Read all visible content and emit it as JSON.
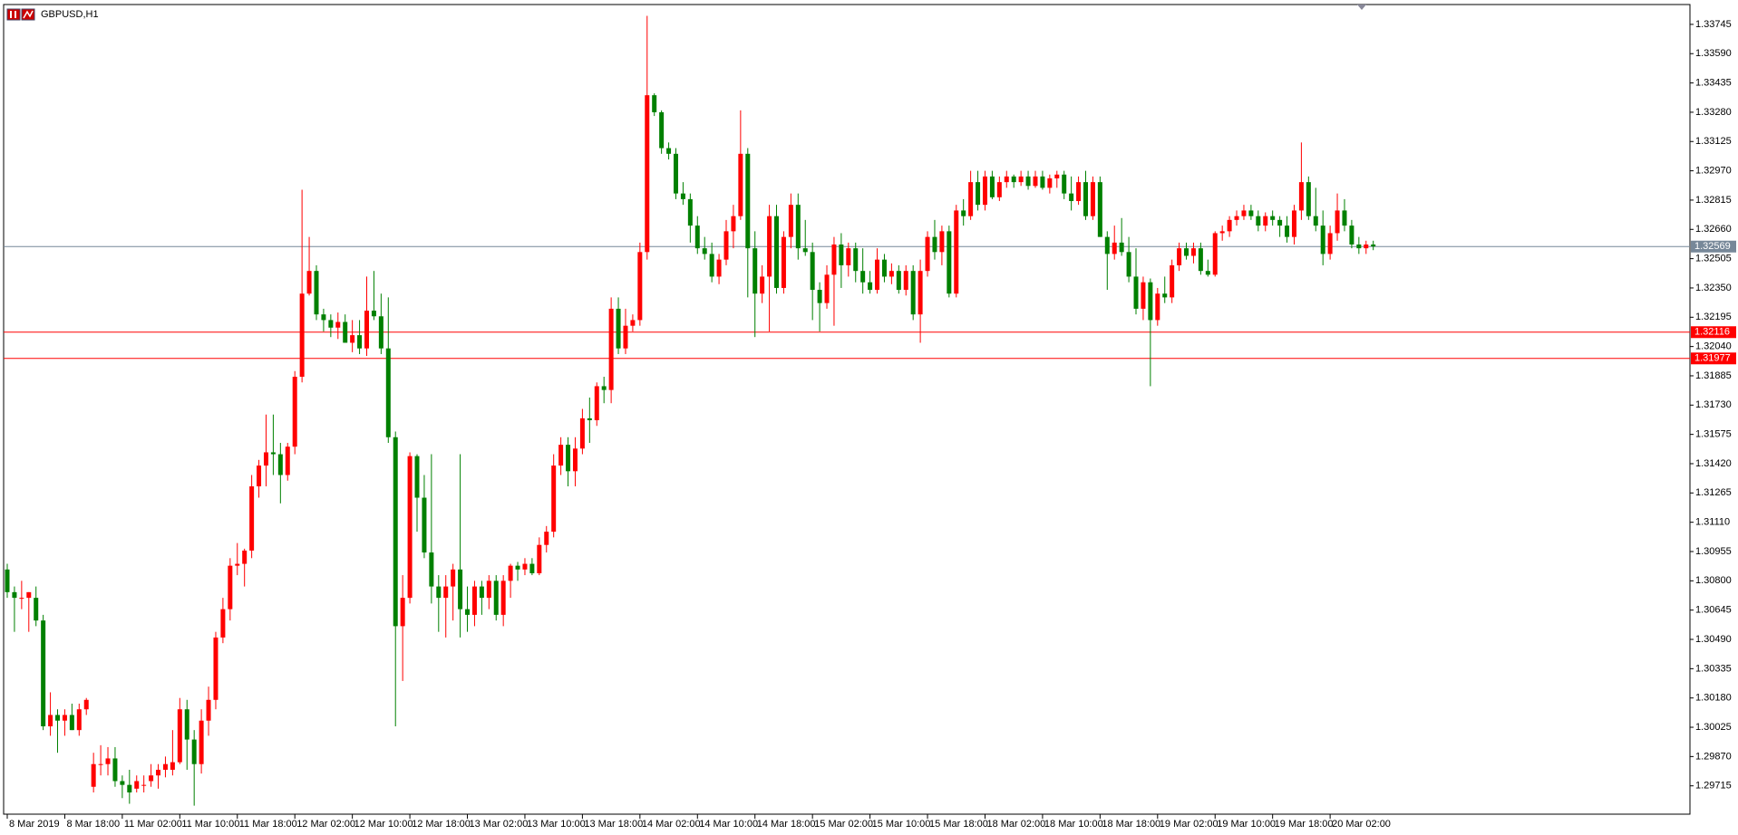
{
  "chart_data": {
    "type": "candlestick",
    "title": "GBPUSD,H1",
    "up_color": "#ff0000",
    "down_color": "#008000",
    "ylim": [
      1.29565,
      1.3385
    ],
    "yticks": [
      1.33745,
      {
        "value": 1.3359,
        "label": "1.33590"
      },
      1.33435,
      {
        "value": 1.3328,
        "label": "1.33280"
      },
      1.33125,
      {
        "value": 1.3297,
        "label": "1.32970"
      },
      1.32815,
      {
        "value": 1.3266,
        "label": "1.32660"
      },
      1.32505,
      {
        "value": 1.3235,
        "label": "1.32350"
      },
      1.32195,
      {
        "value": 1.3204,
        "label": "1.32040"
      },
      1.31885,
      {
        "value": 1.3173,
        "label": "1.31730"
      },
      1.31575,
      {
        "value": 1.3142,
        "label": "1.31420"
      },
      1.31265,
      {
        "value": 1.3111,
        "label": "1.31110"
      },
      1.30955,
      {
        "value": 1.308,
        "label": "1.30800"
      },
      1.30645,
      {
        "value": 1.3049,
        "label": "1.30490"
      },
      1.30335,
      {
        "value": 1.3018,
        "label": "1.30180"
      },
      1.30025,
      {
        "value": 1.2987,
        "label": "1.29870"
      },
      1.29715
    ],
    "hlines": [
      {
        "value": 1.32569,
        "color": "#778899"
      },
      {
        "value": 1.32116,
        "color": "#ff0000"
      },
      {
        "value": 1.31977,
        "color": "#ff0000"
      }
    ],
    "categories": [
      "8 Mar 2019",
      null,
      null,
      null,
      null,
      null,
      null,
      null,
      "8 Mar 18:00",
      null,
      null,
      null,
      null,
      null,
      null,
      null,
      "11 Mar 02:00",
      null,
      null,
      null,
      null,
      null,
      null,
      null,
      "11 Mar 10:00",
      null,
      null,
      null,
      null,
      null,
      null,
      null,
      "11 Mar 18:00",
      null,
      null,
      null,
      null,
      null,
      null,
      null,
      "12 Mar 02:00",
      null,
      null,
      null,
      null,
      null,
      null,
      null,
      "12 Mar 10:00",
      null,
      null,
      null,
      null,
      null,
      null,
      null,
      "12 Mar 18:00",
      null,
      null,
      null,
      null,
      null,
      null,
      null,
      "13 Mar 02:00",
      null,
      null,
      null,
      null,
      null,
      null,
      null,
      "13 Mar 10:00",
      null,
      null,
      null,
      null,
      null,
      null,
      null,
      "13 Mar 18:00",
      null,
      null,
      null,
      null,
      null,
      null,
      null,
      "14 Mar 02:00",
      null,
      null,
      null,
      null,
      null,
      null,
      null,
      "14 Mar 10:00",
      null,
      null,
      null,
      null,
      null,
      null,
      null,
      "14 Mar 18:00",
      null,
      null,
      null,
      null,
      null,
      null,
      null,
      "15 Mar 02:00",
      null,
      null,
      null,
      null,
      null,
      null,
      null,
      "15 Mar 10:00",
      null,
      null,
      null,
      null,
      null,
      null,
      null,
      "15 Mar 18:00",
      null,
      null,
      null,
      null,
      null,
      null,
      null,
      "18 Mar 02:00",
      null,
      null,
      null,
      null,
      null,
      null,
      null,
      "18 Mar 10:00",
      null,
      null,
      null,
      null,
      null,
      null,
      null,
      "18 Mar 18:00",
      null,
      null,
      null,
      null,
      null,
      null,
      null,
      "19 Mar 02:00",
      null,
      null,
      null,
      null,
      null,
      null,
      null,
      "19 Mar 10:00",
      null,
      null,
      null,
      null,
      null,
      null,
      null,
      "19 Mar 18:00",
      null,
      null,
      null,
      null,
      null,
      null,
      null,
      "20 Mar 02:00",
      null,
      null,
      null,
      null,
      null,
      null
    ],
    "candles": [
      [
        1.3086,
        1.3089,
        1.3071,
        1.3074
      ],
      [
        1.3074,
        1.3077,
        1.3053,
        1.3071
      ],
      [
        1.3071,
        1.308,
        1.3065,
        1.3071
      ],
      [
        1.3071,
        1.3074,
        1.3053,
        1.3074
      ],
      [
        1.3071,
        1.3077,
        1.3056,
        1.3059
      ],
      [
        1.3059,
        1.3062,
        1.3001,
        1.3003
      ],
      [
        1.3003,
        1.3021,
        1.2998,
        1.3009
      ],
      [
        1.3009,
        1.3012,
        1.2989,
        1.3006
      ],
      [
        1.3006,
        1.3012,
        1.2998,
        1.3009
      ],
      [
        1.3009,
        1.3015,
        1.3001,
        1.3001
      ],
      [
        1.3001,
        1.3015,
        1.2998,
        1.3012
      ],
      [
        1.3012,
        1.3018,
        1.3009,
        1.3017
      ],
      [
        1.2971,
        1.2989,
        1.2968,
        1.2983
      ],
      [
        1.2983,
        1.2993,
        1.2977,
        1.2983
      ],
      [
        1.2983,
        1.2992,
        1.2977,
        1.2986
      ],
      [
        1.2986,
        1.2992,
        1.2971,
        1.2974
      ],
      [
        1.2974,
        1.2977,
        1.2965,
        1.2972
      ],
      [
        1.2972,
        1.298,
        1.2962,
        1.2968
      ],
      [
        1.297,
        1.2977,
        1.2968,
        1.2974
      ],
      [
        1.2972,
        1.2977,
        1.2968,
        1.2972
      ],
      [
        1.2974,
        1.2983,
        1.2971,
        1.2977
      ],
      [
        1.2977,
        1.2983,
        1.297,
        1.298
      ],
      [
        1.298,
        1.2987,
        1.2976,
        1.2983
      ],
      [
        1.298,
        1.3001,
        1.2977,
        1.2984
      ],
      [
        1.2984,
        1.3018,
        1.2983,
        1.3012
      ],
      [
        1.3012,
        1.3017,
        1.298,
        1.2996
      ],
      [
        1.2996,
        1.3001,
        1.2961,
        1.2983
      ],
      [
        1.2983,
        1.3012,
        1.2978,
        1.3006
      ],
      [
        1.3006,
        1.3024,
        1.2998,
        1.3017
      ],
      [
        1.3017,
        1.3053,
        1.3012,
        1.305
      ],
      [
        1.305,
        1.3071,
        1.3047,
        1.3065
      ],
      [
        1.3065,
        1.3092,
        1.3059,
        1.3088
      ],
      [
        1.3088,
        1.31,
        1.3083,
        1.3089
      ],
      [
        1.3089,
        1.3097,
        1.3077,
        1.3096
      ],
      [
        1.3096,
        1.3136,
        1.3092,
        1.313
      ],
      [
        1.313,
        1.3144,
        1.3124,
        1.3141
      ],
      [
        1.3141,
        1.3168,
        1.313,
        1.3148
      ],
      [
        1.3148,
        1.3168,
        1.3136,
        1.3147
      ],
      [
        1.3147,
        1.3153,
        1.3121,
        1.3136
      ],
      [
        1.3136,
        1.3153,
        1.3133,
        1.3151
      ],
      [
        1.3151,
        1.3191,
        1.3147,
        1.3188
      ],
      [
        1.3188,
        1.3287,
        1.3185,
        1.3232
      ],
      [
        1.3232,
        1.3262,
        1.3231,
        1.3244
      ],
      [
        1.3244,
        1.3247,
        1.3218,
        1.3221
      ],
      [
        1.3221,
        1.3224,
        1.3212,
        1.3218
      ],
      [
        1.3218,
        1.3221,
        1.3209,
        1.3214
      ],
      [
        1.3214,
        1.3222,
        1.3208,
        1.3217
      ],
      [
        1.3217,
        1.3221,
        1.3206,
        1.3206
      ],
      [
        1.3206,
        1.3218,
        1.3201,
        1.321
      ],
      [
        1.321,
        1.3218,
        1.32,
        1.3203
      ],
      [
        1.3203,
        1.3241,
        1.3199,
        1.3223
      ],
      [
        1.3223,
        1.3244,
        1.3218,
        1.322
      ],
      [
        1.322,
        1.3232,
        1.32,
        1.3203
      ],
      [
        1.3203,
        1.323,
        1.3153,
        1.3156
      ],
      [
        1.3156,
        1.3159,
        1.3003,
        1.3056
      ],
      [
        1.3056,
        1.3083,
        1.3027,
        1.3071
      ],
      [
        1.3071,
        1.3148,
        1.3068,
        1.3146
      ],
      [
        1.3146,
        1.3147,
        1.3106,
        1.3124
      ],
      [
        1.3124,
        1.3136,
        1.3092,
        1.3095
      ],
      [
        1.3095,
        1.3147,
        1.3068,
        1.3077
      ],
      [
        1.3077,
        1.3083,
        1.3053,
        1.3071
      ],
      [
        1.3071,
        1.3083,
        1.305,
        1.3077
      ],
      [
        1.3077,
        1.3089,
        1.3059,
        1.3086
      ],
      [
        1.3086,
        1.3147,
        1.305,
        1.3065
      ],
      [
        1.3065,
        1.3077,
        1.3053,
        1.3062
      ],
      [
        1.3062,
        1.308,
        1.3056,
        1.3077
      ],
      [
        1.3077,
        1.308,
        1.3062,
        1.3071
      ],
      [
        1.3071,
        1.3083,
        1.3065,
        1.308
      ],
      [
        1.308,
        1.3083,
        1.3059,
        1.3062
      ],
      [
        1.3062,
        1.3083,
        1.3056,
        1.308
      ],
      [
        1.308,
        1.3089,
        1.3071,
        1.3088
      ],
      [
        1.3088,
        1.309,
        1.308,
        1.3086
      ],
      [
        1.3086,
        1.3092,
        1.3083,
        1.3089
      ],
      [
        1.3089,
        1.3092,
        1.3083,
        1.3084
      ],
      [
        1.3084,
        1.3103,
        1.3083,
        1.3099
      ],
      [
        1.3099,
        1.3109,
        1.3095,
        1.3106
      ],
      [
        1.3106,
        1.3147,
        1.3103,
        1.3141
      ],
      [
        1.3141,
        1.3156,
        1.3136,
        1.3152
      ],
      [
        1.3152,
        1.3156,
        1.313,
        1.3138
      ],
      [
        1.3138,
        1.3156,
        1.313,
        1.315
      ],
      [
        1.315,
        1.3171,
        1.3147,
        1.3166
      ],
      [
        1.3166,
        1.3177,
        1.3153,
        1.3165
      ],
      [
        1.3165,
        1.3185,
        1.3162,
        1.3183
      ],
      [
        1.3183,
        1.3188,
        1.3174,
        1.3181
      ],
      [
        1.3181,
        1.323,
        1.3174,
        1.3224
      ],
      [
        1.3224,
        1.323,
        1.32,
        1.3203
      ],
      [
        1.3203,
        1.3224,
        1.32,
        1.3215
      ],
      [
        1.3215,
        1.3221,
        1.3212,
        1.3218
      ],
      [
        1.3218,
        1.3259,
        1.3215,
        1.3254
      ],
      [
        1.3254,
        1.3379,
        1.325,
        1.3337
      ],
      [
        1.3337,
        1.3338,
        1.3326,
        1.3328
      ],
      [
        1.3328,
        1.3329,
        1.3306,
        1.3309
      ],
      [
        1.3309,
        1.3312,
        1.3303,
        1.3306
      ],
      [
        1.3306,
        1.3309,
        1.3282,
        1.3285
      ],
      [
        1.3285,
        1.3291,
        1.3279,
        1.3282
      ],
      [
        1.3282,
        1.3285,
        1.3259,
        1.3268
      ],
      [
        1.3268,
        1.3273,
        1.3253,
        1.3256
      ],
      [
        1.3256,
        1.3262,
        1.325,
        1.3253
      ],
      [
        1.3253,
        1.3259,
        1.3238,
        1.3241
      ],
      [
        1.3241,
        1.3253,
        1.3237,
        1.325
      ],
      [
        1.325,
        1.3271,
        1.3247,
        1.3265
      ],
      [
        1.3265,
        1.3279,
        1.3256,
        1.3273
      ],
      [
        1.3273,
        1.3329,
        1.3271,
        1.3306
      ],
      [
        1.3306,
        1.3309,
        1.323,
        1.3256
      ],
      [
        1.3256,
        1.3265,
        1.3209,
        1.3232
      ],
      [
        1.3232,
        1.3247,
        1.3227,
        1.3241
      ],
      [
        1.3241,
        1.3279,
        1.3212,
        1.3273
      ],
      [
        1.3273,
        1.3279,
        1.3232,
        1.3235
      ],
      [
        1.3235,
        1.3265,
        1.3232,
        1.3262
      ],
      [
        1.3262,
        1.3285,
        1.3256,
        1.3279
      ],
      [
        1.3279,
        1.3285,
        1.325,
        1.3256
      ],
      [
        1.3256,
        1.3271,
        1.3252,
        1.3254
      ],
      [
        1.3254,
        1.3259,
        1.3218,
        1.3234
      ],
      [
        1.3234,
        1.3238,
        1.3212,
        1.3227
      ],
      [
        1.3227,
        1.3247,
        1.3224,
        1.3242
      ],
      [
        1.3242,
        1.3262,
        1.3215,
        1.3258
      ],
      [
        1.3258,
        1.3264,
        1.3235,
        1.3247
      ],
      [
        1.3247,
        1.3259,
        1.3241,
        1.3256
      ],
      [
        1.3256,
        1.3259,
        1.3238,
        1.3244
      ],
      [
        1.3244,
        1.3256,
        1.3232,
        1.3238
      ],
      [
        1.3238,
        1.3244,
        1.3232,
        1.3234
      ],
      [
        1.3234,
        1.3256,
        1.3232,
        1.325
      ],
      [
        1.325,
        1.3253,
        1.3238,
        1.3241
      ],
      [
        1.3241,
        1.3248,
        1.3237,
        1.3244
      ],
      [
        1.3244,
        1.3247,
        1.3232,
        1.3234
      ],
      [
        1.3234,
        1.3247,
        1.3231,
        1.3244
      ],
      [
        1.3244,
        1.3247,
        1.3218,
        1.3221
      ],
      [
        1.3221,
        1.325,
        1.3206,
        1.3244
      ],
      [
        1.3244,
        1.3265,
        1.3241,
        1.3262
      ],
      [
        1.3262,
        1.3271,
        1.325,
        1.3254
      ],
      [
        1.3254,
        1.3268,
        1.3247,
        1.3265
      ],
      [
        1.3265,
        1.3268,
        1.323,
        1.3232
      ],
      [
        1.3232,
        1.3279,
        1.323,
        1.3276
      ],
      [
        1.3276,
        1.3282,
        1.3268,
        1.3273
      ],
      [
        1.3273,
        1.3297,
        1.3271,
        1.3291
      ],
      [
        1.3291,
        1.3297,
        1.3276,
        1.3279
      ],
      [
        1.3279,
        1.3297,
        1.3276,
        1.3294
      ],
      [
        1.3294,
        1.3297,
        1.3282,
        1.3283
      ],
      [
        1.3283,
        1.3294,
        1.3281,
        1.3291
      ],
      [
        1.3291,
        1.3297,
        1.3288,
        1.3294
      ],
      [
        1.3294,
        1.3295,
        1.3288,
        1.3291
      ],
      [
        1.3291,
        1.3297,
        1.3289,
        1.3294
      ],
      [
        1.3294,
        1.3297,
        1.3287,
        1.3289
      ],
      [
        1.3289,
        1.3297,
        1.3288,
        1.3294
      ],
      [
        1.3294,
        1.3297,
        1.3287,
        1.3288
      ],
      [
        1.3288,
        1.3295,
        1.3285,
        1.3293
      ],
      [
        1.3293,
        1.3297,
        1.3288,
        1.3295
      ],
      [
        1.3295,
        1.3297,
        1.3282,
        1.3285
      ],
      [
        1.3285,
        1.3294,
        1.3276,
        1.3281
      ],
      [
        1.3281,
        1.3294,
        1.3279,
        1.3291
      ],
      [
        1.3291,
        1.3297,
        1.3271,
        1.3273
      ],
      [
        1.3273,
        1.3294,
        1.3271,
        1.3291
      ],
      [
        1.3291,
        1.3294,
        1.3262,
        1.3262
      ],
      [
        1.3262,
        1.3265,
        1.3234,
        1.3253
      ],
      [
        1.3253,
        1.3268,
        1.325,
        1.3259
      ],
      [
        1.3259,
        1.3272,
        1.3252,
        1.3254
      ],
      [
        1.3254,
        1.3262,
        1.3238,
        1.3241
      ],
      [
        1.3241,
        1.3256,
        1.3221,
        1.3224
      ],
      [
        1.3224,
        1.3241,
        1.3218,
        1.3238
      ],
      [
        1.3238,
        1.324,
        1.3183,
        1.3218
      ],
      [
        1.3218,
        1.3235,
        1.3215,
        1.3232
      ],
      [
        1.3232,
        1.3241,
        1.3227,
        1.323
      ],
      [
        1.323,
        1.325,
        1.3227,
        1.3247
      ],
      [
        1.3247,
        1.3259,
        1.3244,
        1.3256
      ],
      [
        1.3256,
        1.3259,
        1.325,
        1.3252
      ],
      [
        1.3252,
        1.3259,
        1.3248,
        1.3256
      ],
      [
        1.3256,
        1.3259,
        1.3242,
        1.3244
      ],
      [
        1.3244,
        1.325,
        1.3241,
        1.3242
      ],
      [
        1.3242,
        1.3265,
        1.3241,
        1.3264
      ],
      [
        1.3264,
        1.3268,
        1.326,
        1.3265
      ],
      [
        1.3265,
        1.3273,
        1.3262,
        1.3271
      ],
      [
        1.3271,
        1.3276,
        1.3268,
        1.3273
      ],
      [
        1.3273,
        1.3279,
        1.3271,
        1.3276
      ],
      [
        1.3276,
        1.3279,
        1.3271,
        1.3273
      ],
      [
        1.3273,
        1.3276,
        1.3265,
        1.3268
      ],
      [
        1.3268,
        1.3275,
        1.3265,
        1.3273
      ],
      [
        1.3273,
        1.3276,
        1.3268,
        1.3271
      ],
      [
        1.3271,
        1.3273,
        1.3262,
        1.3268
      ],
      [
        1.3268,
        1.3273,
        1.3259,
        1.3262
      ],
      [
        1.3262,
        1.3279,
        1.3258,
        1.3276
      ],
      [
        1.3276,
        1.3312,
        1.3271,
        1.3291
      ],
      [
        1.3291,
        1.3294,
        1.3271,
        1.3273
      ],
      [
        1.3273,
        1.3288,
        1.3265,
        1.3268
      ],
      [
        1.3268,
        1.3276,
        1.3247,
        1.3253
      ],
      [
        1.3253,
        1.3268,
        1.325,
        1.3264
      ],
      [
        1.3264,
        1.3285,
        1.326,
        1.3276
      ],
      [
        1.3276,
        1.3282,
        1.3265,
        1.3268
      ],
      [
        1.3268,
        1.3271,
        1.3256,
        1.3258
      ],
      [
        1.3258,
        1.3262,
        1.3253,
        1.3256
      ],
      [
        1.3256,
        1.326,
        1.3253,
        1.3258
      ],
      [
        1.3258,
        1.326,
        1.3255,
        1.3257
      ]
    ]
  }
}
